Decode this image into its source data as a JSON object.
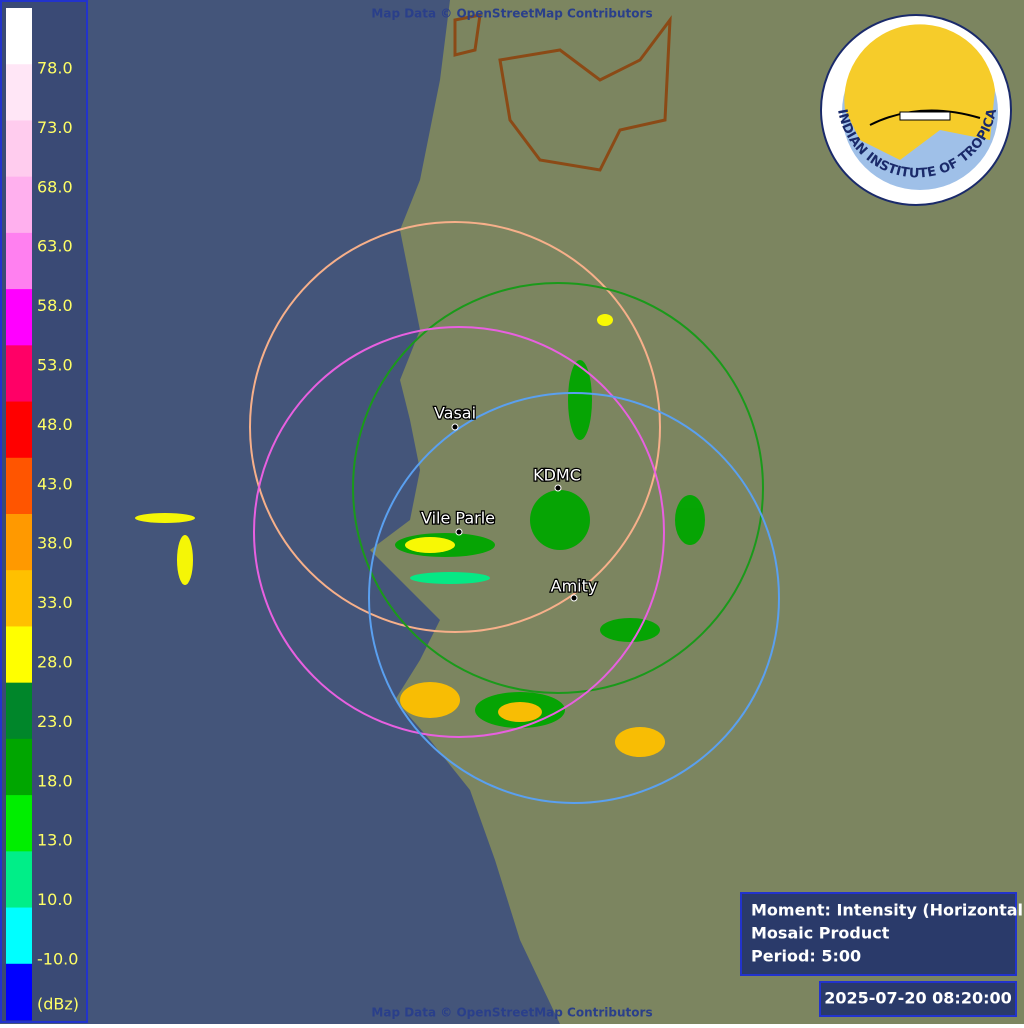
{
  "attribution_top": "Map Data © OpenStreetMap Contributors",
  "attribution_bottom": "Map Data © OpenStreetMap Contributors",
  "legend": {
    "colors": [
      "#ffffff",
      "#ffe6f6",
      "#ffccee",
      "#ffb0ee",
      "#ff80f0",
      "#ff00ff",
      "#ff0066",
      "#ff0000",
      "#ff5500",
      "#ff9900",
      "#ffc000",
      "#ffff00",
      "#00862a",
      "#00a600",
      "#00ee00",
      "#00ee88",
      "#00ffff",
      "#0000ff"
    ],
    "labels": [
      "78.0",
      "73.0",
      "68.0",
      "63.0",
      "58.0",
      "53.0",
      "48.0",
      "43.0",
      "38.0",
      "33.0",
      "28.0",
      "23.0",
      "18.0",
      "13.0",
      "10.0",
      "-10.0"
    ],
    "unit": "(dBz)"
  },
  "stations": [
    {
      "name": "Vasai",
      "color": "#f7b08a"
    },
    {
      "name": "KDMC",
      "color": "#1a9a1a"
    },
    {
      "name": "Vile Parle",
      "color": "#e860e0"
    },
    {
      "name": "Amity",
      "color": "#5aa0f0"
    }
  ],
  "info": [
    "Moment: Intensity (Horizontal)",
    "Mosaic Product",
    "Period: 5:00"
  ],
  "timestamp": "2025-07-20 08:20:00",
  "logo_text": "INDIAN INSTITUTE OF TROPICAL METEOROLOGY PUNE"
}
